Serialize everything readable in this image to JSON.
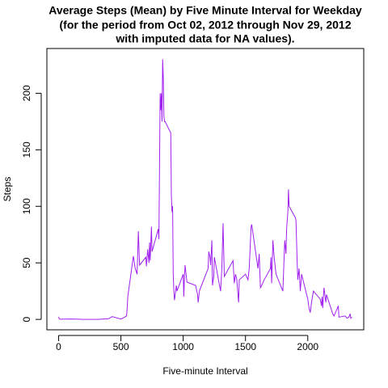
{
  "chart_data": {
    "type": "line",
    "title": [
      "Average Steps (Mean) by Five Minute Interval for Weekday",
      "(for the period from Oct 02, 2012 through Nov 29, 2012",
      "with imputed data for NA values)."
    ],
    "x_label": "Five-minute Interval",
    "y_label": "Steps",
    "x": [
      0,
      5,
      10,
      100,
      200,
      300,
      400,
      430,
      500,
      530,
      545,
      550,
      555,
      600,
      615,
      630,
      640,
      650,
      700,
      705,
      715,
      725,
      730,
      735,
      745,
      750,
      800,
      805,
      815,
      820,
      825,
      830,
      835,
      840,
      845,
      850,
      855,
      900,
      905,
      910,
      915,
      920,
      925,
      930,
      945,
      950,
      1000,
      1005,
      1010,
      1015,
      1030,
      1100,
      1115,
      1120,
      1130,
      1140,
      1200,
      1205,
      1215,
      1220,
      1230,
      1235,
      1245,
      1250,
      1300,
      1310,
      1320,
      1330,
      1400,
      1410,
      1420,
      1430,
      1445,
      1450,
      1500,
      1520,
      1530,
      1545,
      1550,
      1600,
      1610,
      1620,
      1630,
      1650,
      1700,
      1705,
      1710,
      1720,
      1730,
      1745,
      1800,
      1815,
      1825,
      1830,
      1840,
      1845,
      1850,
      1900,
      1905,
      1915,
      1920,
      1930,
      1940,
      1950,
      2000,
      2010,
      2020,
      2030,
      2045,
      2100,
      2110,
      2115,
      2120,
      2130,
      2145,
      2150,
      2200,
      2210,
      2230,
      2245,
      2250,
      2300,
      2315,
      2330,
      2340,
      2345,
      2355
    ],
    "series": [
      {
        "name": "Steps",
        "color": "#a020f0",
        "values": [
          2.3,
          0.5,
          0.2,
          0.4,
          0,
          0,
          0.5,
          2.5,
          0.3,
          2,
          3,
          9,
          20,
          56,
          45,
          40,
          78,
          48,
          55,
          47,
          62,
          50,
          68,
          52,
          82,
          60,
          80,
          71,
          200,
          185,
          200,
          175,
          230,
          215,
          180,
          175,
          175,
          165,
          110,
          95,
          100,
          40,
          25,
          17,
          30,
          25,
          40,
          20,
          38,
          48,
          33,
          30,
          22,
          15,
          25,
          28,
          45,
          60,
          55,
          48,
          70,
          30,
          38,
          55,
          25,
          45,
          85,
          38,
          52,
          32,
          40,
          35,
          15,
          35,
          40,
          35,
          45,
          82,
          84,
          45,
          58,
          28,
          30,
          35,
          45,
          55,
          32,
          70,
          55,
          40,
          25,
          70,
          58,
          80,
          95,
          115,
          100,
          90,
          88,
          50,
          35,
          45,
          25,
          40,
          18,
          10,
          6,
          15,
          25,
          18,
          12,
          20,
          10,
          28,
          15,
          22,
          5,
          3,
          8,
          12,
          2,
          3,
          1,
          2,
          5,
          1,
          2
        ]
      }
    ],
    "xlim": [
      -94.2,
      2449.2
    ],
    "ylim": [
      -9.2,
      239.6
    ],
    "xticks": [
      0,
      500,
      1000,
      1500,
      2000
    ],
    "yticks": [
      0,
      50,
      100,
      150,
      200
    ]
  }
}
